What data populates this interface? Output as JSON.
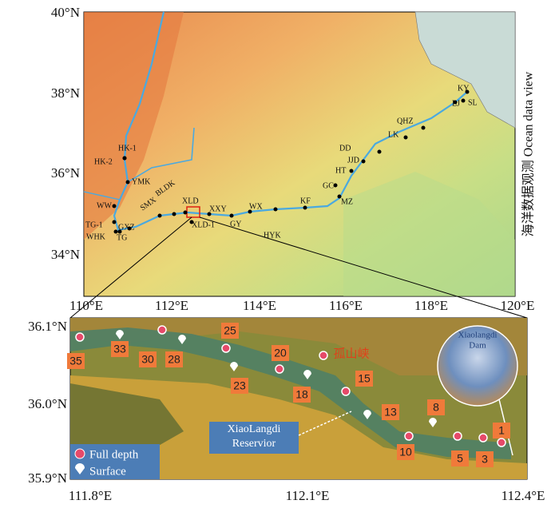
{
  "map": {
    "top": {
      "lat_labels": [
        "40°N",
        "38°N",
        "36°N",
        "34°N"
      ],
      "lon_labels": [
        "110°E",
        "112°E",
        "114°E",
        "116°E",
        "118°E",
        "120°E"
      ],
      "side_label": "海洋数据观测 Ocean data view",
      "stations": [
        "HK-1",
        "HK-2",
        "YMK",
        "WW",
        "TG-1",
        "WHK",
        "TG",
        "GXZ",
        "SMX",
        "BLDK",
        "XLD",
        "XXY",
        "XLD-1",
        "GY",
        "WX",
        "HYK",
        "KF",
        "MZ",
        "GC",
        "HT",
        "JJD",
        "DD",
        "LK",
        "QHZ",
        "LJ",
        "SL",
        "KY"
      ]
    },
    "inset": {
      "lat_labels": [
        "36.1°N",
        "36.0°N",
        "35.9°N"
      ],
      "lon_labels": [
        "111.8°E",
        "112.1°E",
        "112.4°E"
      ],
      "sites": [
        "35",
        "33",
        "30",
        "28",
        "25",
        "23",
        "20",
        "18",
        "15",
        "13",
        "10",
        "8",
        "5",
        "3",
        "1"
      ],
      "place_label": "孤山峡",
      "reservoir_label": [
        "XiaoLangdi",
        "Reservior"
      ],
      "dam_label": [
        "Xiaolangdi",
        "Dam"
      ],
      "legend": [
        "Full depth",
        "Surface"
      ]
    }
  }
}
